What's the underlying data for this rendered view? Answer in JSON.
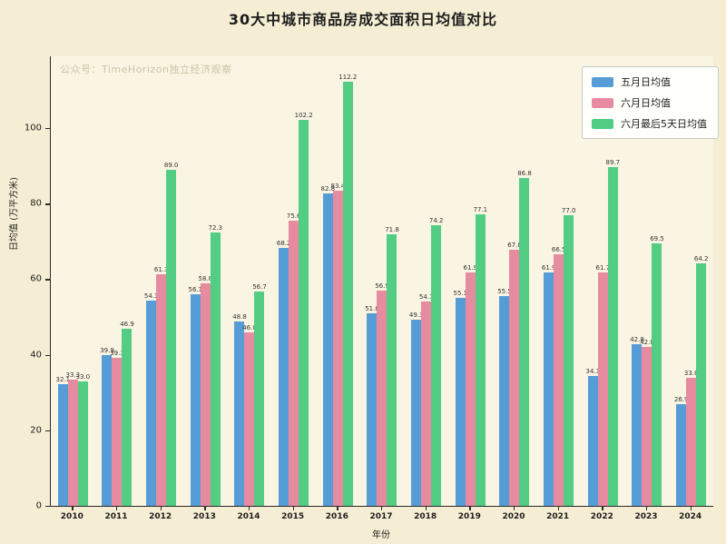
{
  "title": "30大中城市商品房成交面积日均值对比",
  "watermark": "公众号：TimeHorizon独立经济观察",
  "colors": {
    "background": "#f6eed4",
    "plot_background": "#faf4e3",
    "axis": "#2b2b2b",
    "series_may": "#569cd6",
    "series_june": "#e78ba0",
    "series_june_last5": "#53cc84",
    "watermark_text": "#ccc3a6"
  },
  "axes": {
    "xlabel": "年份",
    "ylabel": "日均值 (万平方米)",
    "yticks": [
      0,
      20,
      40,
      60,
      80,
      100
    ]
  },
  "chart_data": {
    "type": "bar",
    "title": "30大中城市商品房成交面积日均值对比",
    "xlabel": "年份",
    "ylabel": "日均值 (万平方米)",
    "ylim": [
      0,
      119
    ],
    "grid": false,
    "legend_position": "upper right",
    "categories": [
      "2010",
      "2011",
      "2012",
      "2013",
      "2014",
      "2015",
      "2016",
      "2017",
      "2018",
      "2019",
      "2020",
      "2021",
      "2022",
      "2023",
      "2024"
    ],
    "series": [
      {
        "name": "五月日均值",
        "color": "#569cd6",
        "values": [
          32.1,
          39.9,
          54.3,
          56.1,
          48.8,
          68.2,
          82.8,
          51.0,
          49.3,
          55.1,
          55.5,
          61.9,
          34.3,
          42.8,
          26.9
        ]
      },
      {
        "name": "六月日均值",
        "color": "#e78ba0",
        "values": [
          33.3,
          39.3,
          61.3,
          58.8,
          46.0,
          75.6,
          83.4,
          56.9,
          54.1,
          61.9,
          67.8,
          66.5,
          61.7,
          42.0,
          33.8
        ]
      },
      {
        "name": "六月最后5天日均值",
        "color": "#53cc84",
        "values": [
          33.0,
          46.9,
          89.0,
          72.3,
          56.7,
          102.2,
          112.2,
          71.8,
          74.2,
          77.1,
          86.8,
          77.0,
          89.7,
          69.5,
          64.2
        ]
      }
    ]
  }
}
